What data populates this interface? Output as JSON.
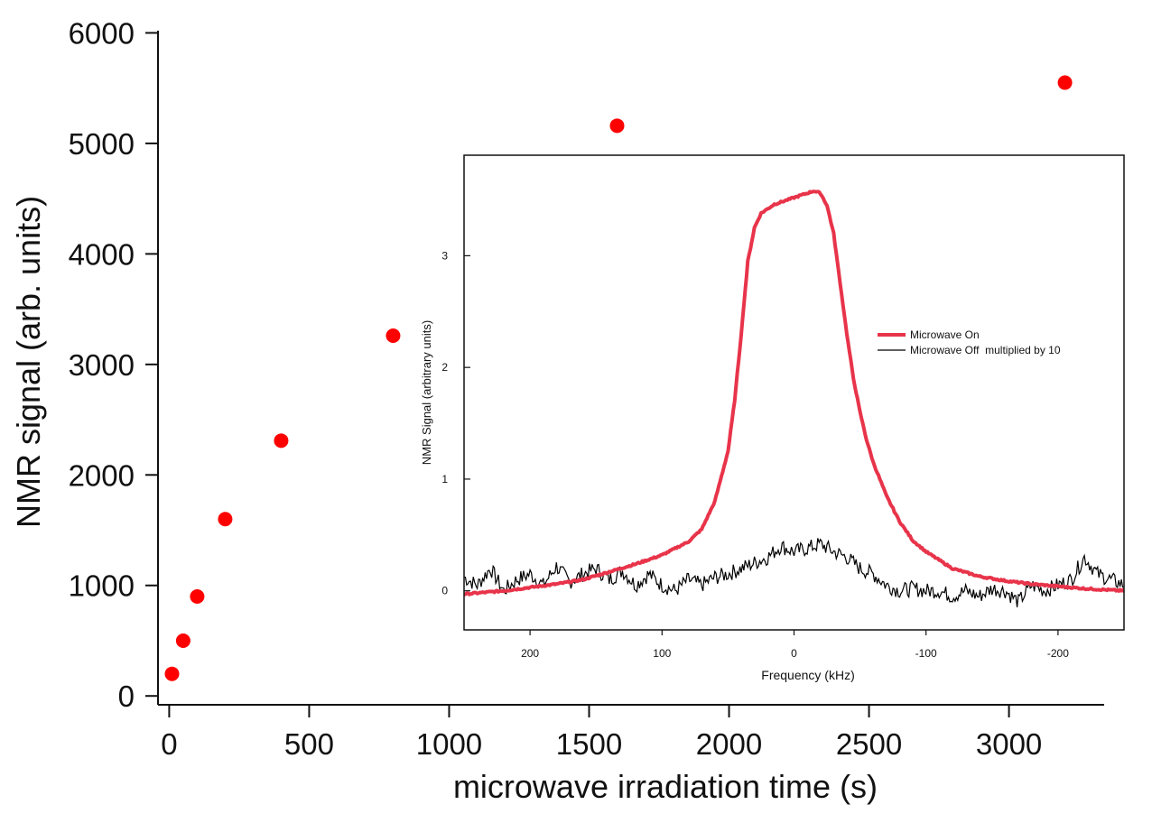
{
  "chart_data": [
    {
      "type": "scatter",
      "title": "",
      "xlabel": "microwave irradiation time (s)",
      "ylabel": "NMR signal (arb. units)",
      "xlim": [
        -40,
        3340
      ],
      "ylim": [
        -80,
        6020
      ],
      "xticks": [
        0,
        500,
        1000,
        1500,
        2000,
        2500,
        3000
      ],
      "yticks": [
        0,
        1000,
        2000,
        3000,
        4000,
        5000,
        6000
      ],
      "marker_color": "#ff0000",
      "series": [
        {
          "name": "NMR signal",
          "x": [
            10,
            50,
            100,
            200,
            400,
            800,
            1600,
            3200
          ],
          "y": [
            200,
            500,
            900,
            1600,
            2310,
            3260,
            5160,
            5550
          ]
        }
      ]
    },
    {
      "type": "line",
      "title": "",
      "xlabel": "Frequency (kHz)",
      "ylabel": "NMR Signal (arbitrary units)",
      "xlim": [
        250,
        -250
      ],
      "ylim": [
        -0.35,
        3.9
      ],
      "xticks": [
        200,
        100,
        0,
        -100,
        -200
      ],
      "xtick_labels": [
        "200",
        "100",
        "0",
        "-100",
        "-200"
      ],
      "yticks": [
        0,
        1,
        2,
        3
      ],
      "legend_position": "right",
      "series": [
        {
          "name": "Microwave On",
          "color": "#e8344a",
          "x": [
            250,
            220,
            200,
            180,
            160,
            140,
            120,
            100,
            80,
            70,
            60,
            50,
            45,
            40,
            35,
            30,
            25,
            20,
            15,
            10,
            5,
            0,
            -5,
            -10,
            -15,
            -20,
            -25,
            -30,
            -35,
            -40,
            -45,
            -50,
            -55,
            -60,
            -70,
            -80,
            -90,
            -100,
            -120,
            -140,
            -160,
            -180,
            -200,
            -220,
            -250
          ],
          "y": [
            -0.03,
            0.0,
            0.03,
            0.06,
            0.1,
            0.17,
            0.24,
            0.32,
            0.44,
            0.55,
            0.8,
            1.25,
            1.7,
            2.3,
            2.95,
            3.25,
            3.38,
            3.42,
            3.46,
            3.48,
            3.5,
            3.52,
            3.54,
            3.56,
            3.58,
            3.56,
            3.45,
            3.2,
            2.75,
            2.3,
            1.9,
            1.6,
            1.35,
            1.15,
            0.85,
            0.62,
            0.45,
            0.35,
            0.2,
            0.13,
            0.09,
            0.06,
            0.04,
            0.02,
            0.0
          ]
        },
        {
          "name": "Microwave Off  multiplied by 10",
          "color": "#000000",
          "x": [
            250,
            240,
            230,
            220,
            210,
            200,
            190,
            180,
            170,
            160,
            150,
            140,
            130,
            120,
            110,
            100,
            90,
            80,
            70,
            60,
            50,
            40,
            30,
            20,
            10,
            0,
            -10,
            -20,
            -30,
            -40,
            -50,
            -60,
            -70,
            -80,
            -90,
            -100,
            -110,
            -120,
            -130,
            -140,
            -150,
            -160,
            -170,
            -180,
            -190,
            -200,
            -210,
            -220,
            -230,
            -240,
            -250
          ],
          "y": [
            0.12,
            0.05,
            0.2,
            0.0,
            0.1,
            0.15,
            0.05,
            0.22,
            0.08,
            0.15,
            0.2,
            0.1,
            0.18,
            0.05,
            0.15,
            0.05,
            0.0,
            0.1,
            0.05,
            0.12,
            0.15,
            0.2,
            0.25,
            0.3,
            0.4,
            0.35,
            0.38,
            0.42,
            0.35,
            0.3,
            0.2,
            0.15,
            0.05,
            0.0,
            0.02,
            0.0,
            0.0,
            -0.05,
            0.0,
            -0.05,
            0.02,
            0.0,
            -0.1,
            0.05,
            0.0,
            0.05,
            0.1,
            0.3,
            0.15,
            0.1,
            0.05
          ]
        }
      ]
    }
  ]
}
